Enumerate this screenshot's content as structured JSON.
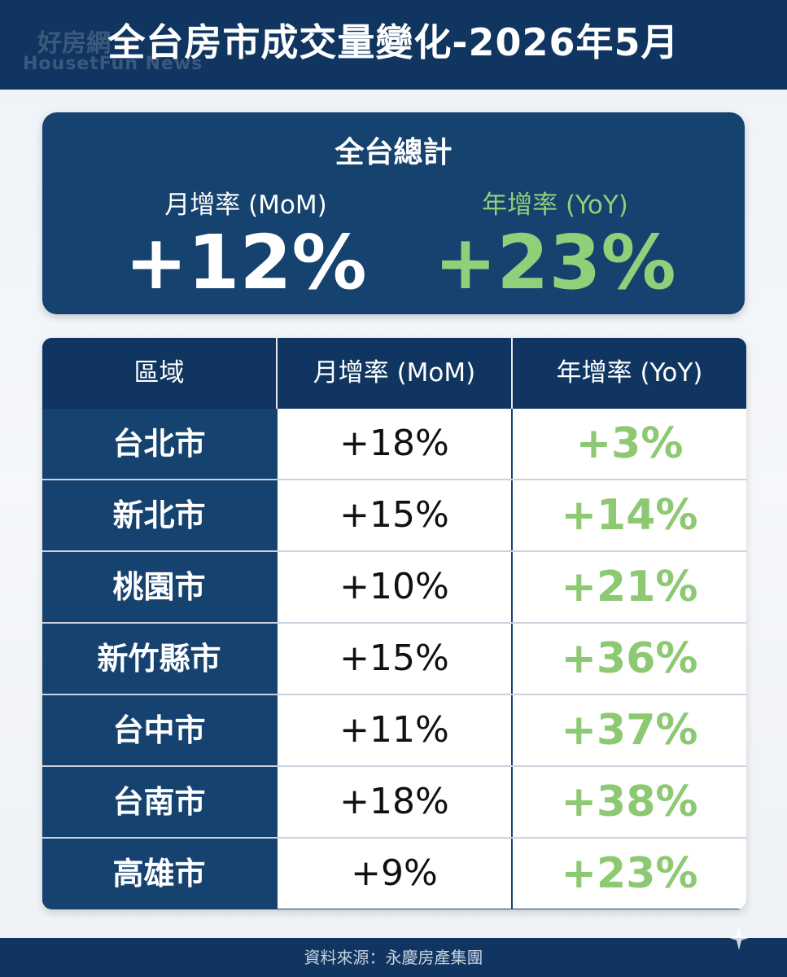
{
  "header": {
    "title": "全台房市成交量變化-2026年5月",
    "watermark_line1": "好房網",
    "watermark_line2": "HousetFun News"
  },
  "summary": {
    "title": "全台總計",
    "mom_label": "月增率 (MoM)",
    "mom_value": "+12%",
    "yoy_label": "年增率 (YoY)",
    "yoy_value": "+23%"
  },
  "table": {
    "columns": [
      "區域",
      "月增率 (MoM)",
      "年增率 (YoY)"
    ],
    "rows": [
      {
        "region": "台北市",
        "mom": "+18%",
        "yoy": "+3%"
      },
      {
        "region": "新北市",
        "mom": "+15%",
        "yoy": "+14%"
      },
      {
        "region": "桃園市",
        "mom": "+10%",
        "yoy": "+21%"
      },
      {
        "region": "新竹縣市",
        "mom": "+15%",
        "yoy": "+36%"
      },
      {
        "region": "台中市",
        "mom": "+11%",
        "yoy": "+37%"
      },
      {
        "region": "台南市",
        "mom": "+18%",
        "yoy": "+38%"
      },
      {
        "region": "高雄市",
        "mom": "+9%",
        "yoy": "+23%"
      }
    ]
  },
  "footer": {
    "source": "資料來源：永慶房產集團"
  },
  "colors": {
    "navy": "#0f3560",
    "panel": "#15426f",
    "green": "#8cc972"
  },
  "icons": {
    "sparkle": "sparkle-icon"
  }
}
